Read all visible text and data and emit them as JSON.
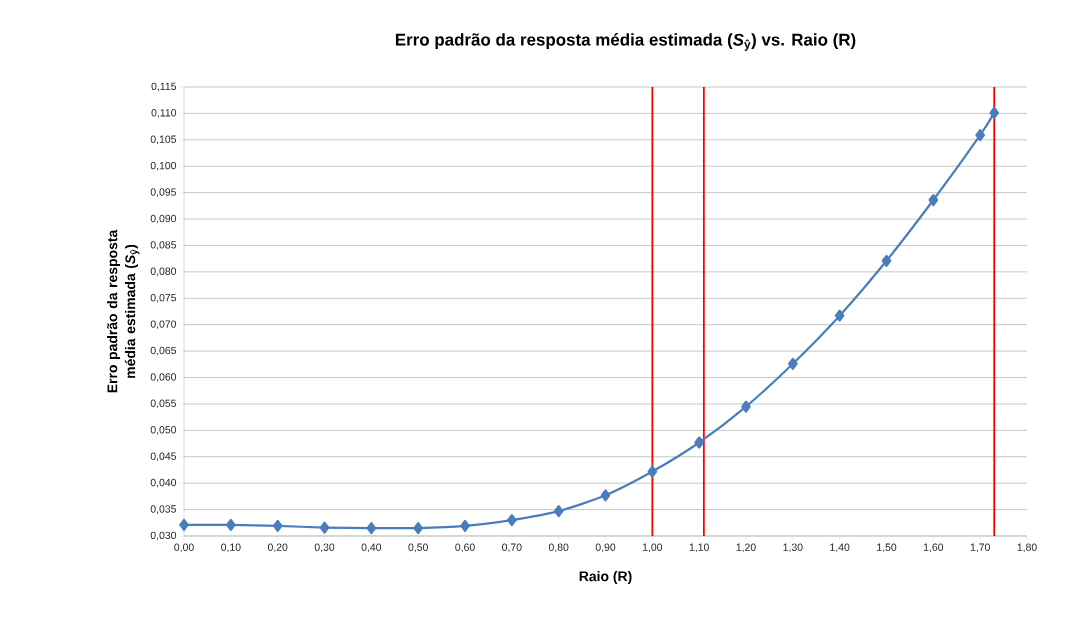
{
  "chart_data": {
    "type": "line",
    "title": "Erro padrão da resposta média estimada (*S*$_{ŷ}$) vs. Raio (R)",
    "xlabel": "Raio (R)",
    "ylabel": "Erro padrão da resposta média estimada (*S*$_{ŷ}$)",
    "x": [
      0.0,
      0.1,
      0.2,
      0.3,
      0.4,
      0.5,
      0.6,
      0.7,
      0.8,
      0.9,
      1.0,
      1.1,
      1.2,
      1.3,
      1.4,
      1.5,
      1.6,
      1.7,
      1.73
    ],
    "series": [
      {
        "color": "#4a7ebb",
        "values": [
          0.0321,
          0.0321,
          0.0319,
          0.0316,
          0.0315,
          0.0315,
          0.0319,
          0.033,
          0.0347,
          0.0377,
          0.0422,
          0.0477,
          0.0545,
          0.0626,
          0.0717,
          0.0821,
          0.0936,
          0.1059,
          0.1101
        ]
      }
    ],
    "xlim": [
      0,
      1.8
    ],
    "ylim": [
      0.03,
      0.115
    ],
    "xticks": [
      {
        "value": 0.0,
        "label": "0,00"
      },
      {
        "value": 0.1,
        "label": "0,10"
      },
      {
        "value": 0.2,
        "label": "0,20"
      },
      {
        "value": 0.3,
        "label": "0,30"
      },
      {
        "value": 0.4,
        "label": "0,40"
      },
      {
        "value": 0.5,
        "label": "0,50"
      },
      {
        "value": 0.6,
        "label": "0,60"
      },
      {
        "value": 0.7,
        "label": "0,70"
      },
      {
        "value": 0.8,
        "label": "0,80"
      },
      {
        "value": 0.9,
        "label": "0,90"
      },
      {
        "value": 1.0,
        "label": "1,00"
      },
      {
        "value": 1.1,
        "label": "1,10"
      },
      {
        "value": 1.2,
        "label": "1,20"
      },
      {
        "value": 1.3,
        "label": "1,30"
      },
      {
        "value": 1.4,
        "label": "1,40"
      },
      {
        "value": 1.5,
        "label": "1,50"
      },
      {
        "value": 1.6,
        "label": "1,60"
      },
      {
        "value": 1.7,
        "label": "1,70"
      },
      {
        "value": 1.8,
        "label": "1,80"
      }
    ],
    "yticks": [
      {
        "value": 0.03,
        "label": "0,030"
      },
      {
        "value": 0.035,
        "label": "0,035"
      },
      {
        "value": 0.04,
        "label": "0,040"
      },
      {
        "value": 0.045,
        "label": "0,045"
      },
      {
        "value": 0.05,
        "label": "0,050"
      },
      {
        "value": 0.055,
        "label": "0,055"
      },
      {
        "value": 0.06,
        "label": "0,060"
      },
      {
        "value": 0.065,
        "label": "0,065"
      },
      {
        "value": 0.07,
        "label": "0,070"
      },
      {
        "value": 0.075,
        "label": "0,075"
      },
      {
        "value": 0.08,
        "label": "0,080"
      },
      {
        "value": 0.085,
        "label": "0,085"
      },
      {
        "value": 0.09,
        "label": "0,090"
      },
      {
        "value": 0.095,
        "label": "0,095"
      },
      {
        "value": 0.1,
        "label": "0,100"
      },
      {
        "value": 0.105,
        "label": "0,105"
      },
      {
        "value": 0.11,
        "label": "0,110"
      },
      {
        "value": 0.115,
        "label": "0,115"
      }
    ],
    "ref_lines": [
      {
        "axis": "x",
        "value": 1.0,
        "color": "#ff0000"
      },
      {
        "axis": "x",
        "value": 1.11,
        "color": "#ff0000"
      },
      {
        "axis": "x",
        "value": 1.73,
        "color": "#ff0000"
      }
    ],
    "grid": "y",
    "marker": "diamond",
    "line_style": "solid"
  }
}
